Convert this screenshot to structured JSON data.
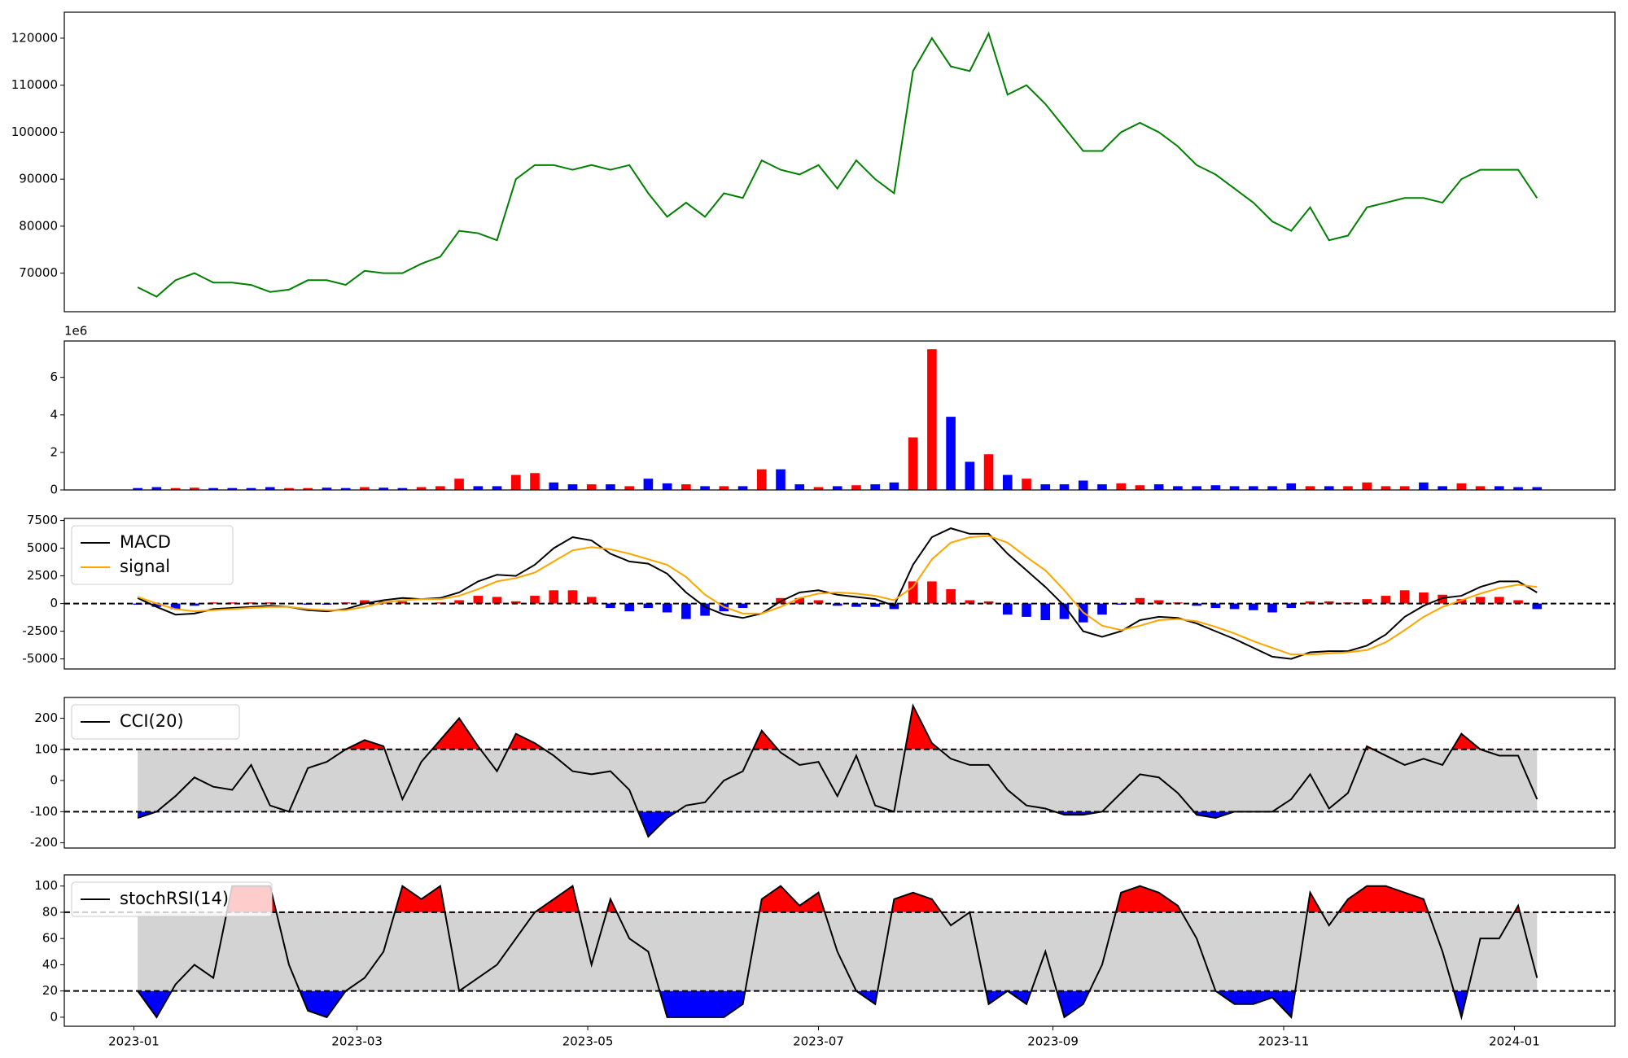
{
  "chart_data": [
    {
      "type": "line",
      "color": "green",
      "x": [
        1,
        6,
        11,
        16,
        21,
        26,
        31,
        36,
        41,
        46,
        51,
        56,
        61,
        66,
        71,
        76,
        81,
        86,
        91,
        96,
        101,
        106,
        111,
        116,
        121,
        126,
        131,
        136,
        141,
        146,
        151,
        156,
        161,
        166,
        171,
        176,
        181,
        186,
        191,
        196,
        201,
        206,
        211,
        216,
        221,
        226,
        231,
        236,
        241,
        246,
        251,
        256,
        261,
        266,
        271,
        276,
        281,
        286,
        291,
        296,
        301,
        306,
        311,
        316,
        321,
        326,
        331,
        336,
        341,
        346,
        351,
        356,
        361,
        366,
        371
      ],
      "values": [
        67000,
        65000,
        68500,
        70000,
        68000,
        68000,
        67500,
        66000,
        66500,
        68500,
        68500,
        67500,
        70500,
        70000,
        70000,
        72000,
        73500,
        79000,
        78500,
        77000,
        90000,
        93000,
        93000,
        92000,
        93000,
        92000,
        93000,
        87000,
        82000,
        85000,
        82000,
        87000,
        86000,
        94000,
        92000,
        91000,
        93000,
        88000,
        94000,
        90000,
        87000,
        113000,
        120000,
        114000,
        113000,
        121000,
        108000,
        110000,
        106000,
        101000,
        96000,
        96000,
        100000,
        102000,
        100000,
        97000,
        93000,
        91000,
        88000,
        85000,
        81000,
        79000,
        84000,
        77000,
        78000,
        84000,
        85000,
        86000,
        86000,
        85000,
        90000,
        92000,
        92000,
        92000,
        86000
      ],
      "xlim": [
        -18.4,
        391.6
      ],
      "ylim": [
        61800,
        125530
      ],
      "yticks": [
        70000,
        80000,
        90000,
        100000,
        110000,
        120000
      ]
    },
    {
      "type": "bar",
      "offset_label": "1e6",
      "up_color": "red",
      "down_color": "blue",
      "x": [
        1,
        6,
        11,
        16,
        21,
        26,
        31,
        36,
        41,
        46,
        51,
        56,
        61,
        66,
        71,
        76,
        81,
        86,
        91,
        96,
        101,
        106,
        111,
        116,
        121,
        126,
        131,
        136,
        141,
        146,
        151,
        156,
        161,
        166,
        171,
        176,
        181,
        186,
        191,
        196,
        201,
        206,
        211,
        216,
        221,
        226,
        231,
        236,
        241,
        246,
        251,
        256,
        261,
        266,
        271,
        276,
        281,
        286,
        291,
        296,
        301,
        306,
        311,
        316,
        321,
        326,
        331,
        336,
        341,
        346,
        351,
        356,
        361,
        366,
        371
      ],
      "values": [
        0.1,
        0.15,
        0.1,
        0.12,
        0.1,
        0.1,
        0.1,
        0.15,
        0.1,
        0.1,
        0.12,
        0.1,
        0.15,
        0.12,
        0.1,
        0.15,
        0.2,
        0.6,
        0.2,
        0.2,
        0.8,
        0.9,
        0.4,
        0.3,
        0.3,
        0.3,
        0.2,
        0.6,
        0.35,
        0.3,
        0.2,
        0.2,
        0.2,
        1.1,
        1.1,
        0.3,
        0.15,
        0.2,
        0.25,
        0.3,
        0.4,
        2.8,
        7.5,
        3.9,
        1.5,
        1.9,
        0.8,
        0.6,
        0.3,
        0.3,
        0.5,
        0.3,
        0.35,
        0.25,
        0.3,
        0.2,
        0.2,
        0.25,
        0.2,
        0.2,
        0.2,
        0.35,
        0.2,
        0.2,
        0.2,
        0.4,
        0.2,
        0.2,
        0.4,
        0.2,
        0.35,
        0.2,
        0.2,
        0.15,
        0.15
      ],
      "xlim": [
        -18.4,
        391.6
      ],
      "ylim": [
        0,
        7.94
      ],
      "yticks": [
        0,
        2,
        4,
        6
      ]
    },
    {
      "type": "line",
      "legend": "upper left",
      "hlines": [
        0
      ],
      "x": [
        1,
        6,
        11,
        16,
        21,
        26,
        31,
        36,
        41,
        46,
        51,
        56,
        61,
        66,
        71,
        76,
        81,
        86,
        91,
        96,
        101,
        106,
        111,
        116,
        121,
        126,
        131,
        136,
        141,
        146,
        151,
        156,
        161,
        166,
        171,
        176,
        181,
        186,
        191,
        196,
        201,
        206,
        211,
        216,
        221,
        226,
        231,
        236,
        241,
        246,
        251,
        256,
        261,
        266,
        271,
        276,
        281,
        286,
        291,
        296,
        301,
        306,
        311,
        316,
        321,
        326,
        331,
        336,
        341,
        346,
        351,
        356,
        361,
        366,
        371
      ],
      "series": [
        {
          "name": "MACD",
          "color": "black",
          "values": [
            500,
            -300,
            -1000,
            -900,
            -500,
            -400,
            -300,
            -200,
            -300,
            -600,
            -700,
            -500,
            0,
            300,
            500,
            400,
            500,
            1000,
            2000,
            2600,
            2500,
            3500,
            5000,
            6000,
            5700,
            4500,
            3800,
            3600,
            2700,
            1000,
            -300,
            -1000,
            -1300,
            -900,
            200,
            1000,
            1200,
            800,
            600,
            400,
            -200,
            3500,
            6000,
            6800,
            6300,
            6300,
            4500,
            3000,
            1500,
            -200,
            -2500,
            -3000,
            -2500,
            -1500,
            -1200,
            -1300,
            -1800,
            -2500,
            -3200,
            -4000,
            -4800,
            -5000,
            -4400,
            -4300,
            -4300,
            -3800,
            -2800,
            -1200,
            -200,
            500,
            700,
            1500,
            2000,
            2000,
            1000
          ]
        },
        {
          "name": "signal",
          "color": "orange",
          "values": [
            600,
            0,
            -500,
            -700,
            -600,
            -500,
            -400,
            -300,
            -300,
            -500,
            -600,
            -600,
            -300,
            100,
            300,
            400,
            400,
            700,
            1300,
            2000,
            2300,
            2800,
            3800,
            4800,
            5100,
            4900,
            4500,
            4000,
            3500,
            2400,
            800,
            -300,
            -900,
            -900,
            -300,
            500,
            900,
            1000,
            900,
            700,
            300,
            1500,
            4000,
            5500,
            6000,
            6100,
            5500,
            4200,
            3000,
            1200,
            -800,
            -2000,
            -2400,
            -2000,
            -1500,
            -1400,
            -1600,
            -2100,
            -2700,
            -3400,
            -4000,
            -4600,
            -4600,
            -4500,
            -4400,
            -4200,
            -3500,
            -2400,
            -1200,
            -300,
            300,
            900,
            1400,
            1700,
            1500
          ]
        }
      ],
      "histogram": {
        "pos_color": "red",
        "neg_color": "blue",
        "values": [
          -100,
          -300,
          -500,
          -200,
          100,
          100,
          100,
          100,
          0,
          -100,
          -100,
          100,
          300,
          200,
          200,
          0,
          100,
          300,
          700,
          600,
          200,
          700,
          1200,
          1200,
          600,
          -400,
          -700,
          -400,
          -800,
          -1400,
          -1100,
          -700,
          -400,
          0,
          500,
          500,
          300,
          -200,
          -300,
          -300,
          -500,
          2000,
          2000,
          1300,
          300,
          200,
          -1000,
          -1200,
          -1500,
          -1400,
          -1700,
          -1000,
          -100,
          500,
          300,
          100,
          -200,
          -400,
          -500,
          -600,
          -800,
          -400,
          200,
          200,
          100,
          400,
          700,
          1200,
          1000,
          800,
          400,
          600,
          600,
          300,
          -500
        ]
      },
      "xlim": [
        -18.4,
        391.6
      ],
      "ylim": [
        -5910,
        7690
      ],
      "yticks": [
        -5000,
        -2500,
        0,
        2500,
        5000,
        7500
      ]
    },
    {
      "type": "line",
      "legend": "upper left",
      "hlines": [
        100,
        -100
      ],
      "band_color": "lightgray",
      "above_color": "red",
      "below_color": "blue",
      "x": [
        1,
        6,
        11,
        16,
        21,
        26,
        31,
        36,
        41,
        46,
        51,
        56,
        61,
        66,
        71,
        76,
        81,
        86,
        91,
        96,
        101,
        106,
        111,
        116,
        121,
        126,
        131,
        136,
        141,
        146,
        151,
        156,
        161,
        166,
        171,
        176,
        181,
        186,
        191,
        196,
        201,
        206,
        211,
        216,
        221,
        226,
        231,
        236,
        241,
        246,
        251,
        256,
        261,
        266,
        271,
        276,
        281,
        286,
        291,
        296,
        301,
        306,
        311,
        316,
        321,
        326,
        331,
        336,
        341,
        346,
        351,
        356,
        361,
        366,
        371
      ],
      "series": [
        {
          "name": "CCI(20)",
          "color": "black",
          "values": [
            -120,
            -100,
            -50,
            10,
            -20,
            -30,
            50,
            -80,
            -100,
            40,
            60,
            100,
            130,
            110,
            -60,
            60,
            130,
            200,
            110,
            30,
            150,
            120,
            80,
            30,
            20,
            30,
            -30,
            -180,
            -120,
            -80,
            -70,
            0,
            30,
            160,
            90,
            50,
            60,
            -50,
            80,
            -80,
            -100,
            240,
            120,
            70,
            50,
            50,
            -30,
            -80,
            -90,
            -110,
            -110,
            -100,
            -40,
            20,
            10,
            -40,
            -110,
            -120,
            -100,
            -100,
            -100,
            -60,
            20,
            -90,
            -40,
            110,
            80,
            50,
            70,
            50,
            150,
            100,
            80,
            80,
            -60
          ]
        }
      ],
      "xlim": [
        -18.4,
        391.6
      ],
      "ylim": [
        -216.7,
        266.7
      ],
      "yticks": [
        -200,
        -100,
        0,
        100,
        200
      ]
    },
    {
      "type": "line",
      "legend": "upper left",
      "hlines": [
        80,
        20
      ],
      "band_color": "lightgray",
      "above_color": "red",
      "below_color": "blue",
      "x": [
        1,
        6,
        11,
        16,
        21,
        26,
        31,
        36,
        41,
        46,
        51,
        56,
        61,
        66,
        71,
        76,
        81,
        86,
        91,
        96,
        101,
        106,
        111,
        116,
        121,
        126,
        131,
        136,
        141,
        146,
        151,
        156,
        161,
        166,
        171,
        176,
        181,
        186,
        191,
        196,
        201,
        206,
        211,
        216,
        221,
        226,
        231,
        236,
        241,
        246,
        251,
        256,
        261,
        266,
        271,
        276,
        281,
        286,
        291,
        296,
        301,
        306,
        311,
        316,
        321,
        326,
        331,
        336,
        341,
        346,
        351,
        356,
        361,
        366,
        371
      ],
      "series": [
        {
          "name": "stochRSI(14)",
          "color": "black",
          "values": [
            20,
            0,
            25,
            40,
            30,
            100,
            100,
            100,
            40,
            5,
            0,
            20,
            30,
            50,
            100,
            90,
            100,
            20,
            30,
            40,
            60,
            80,
            90,
            100,
            40,
            90,
            60,
            50,
            0,
            0,
            0,
            0,
            10,
            90,
            100,
            85,
            95,
            50,
            20,
            10,
            90,
            95,
            90,
            70,
            80,
            10,
            20,
            10,
            50,
            0,
            10,
            40,
            95,
            100,
            95,
            85,
            60,
            20,
            10,
            10,
            15,
            0,
            95,
            70,
            90,
            100,
            100,
            95,
            90,
            50,
            0,
            60,
            60,
            85,
            30
          ]
        }
      ],
      "xlim": [
        -18.4,
        391.6
      ],
      "ylim": [
        -6.9,
        108.5
      ],
      "yticks": [
        0,
        20,
        40,
        60,
        80,
        100
      ],
      "xticks": [
        {
          "value": 0,
          "label": "2023-01"
        },
        {
          "value": 59,
          "label": "2023-03"
        },
        {
          "value": 120,
          "label": "2023-05"
        },
        {
          "value": 181,
          "label": "2023-07"
        },
        {
          "value": 243,
          "label": "2023-09"
        },
        {
          "value": 304,
          "label": "2023-11"
        },
        {
          "value": 365,
          "label": "2024-01"
        }
      ]
    }
  ]
}
